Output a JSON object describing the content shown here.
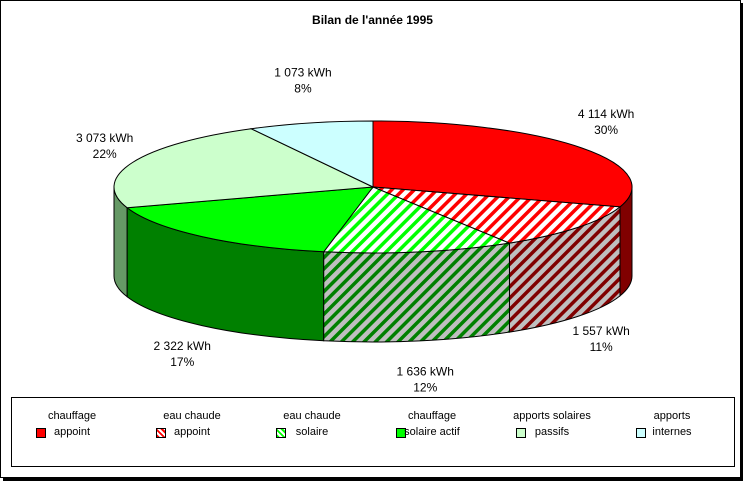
{
  "chart_data": {
    "type": "pie",
    "title": "Bilan de l'année 1995",
    "slices": [
      {
        "name": "chauffage appoint",
        "legend": [
          "chauffage",
          "appoint"
        ],
        "value": 4114,
        "value_label": "4 114 kWh",
        "percent_label": "30%",
        "color": "#ff0000",
        "pattern": "solid"
      },
      {
        "name": "eau chaude appoint",
        "legend": [
          "eau chaude",
          "appoint"
        ],
        "value": 1557,
        "value_label": "1 557 kWh",
        "percent_label": "11%",
        "color": "#ff0000",
        "pattern": "hatch"
      },
      {
        "name": "eau chaude solaire",
        "legend": [
          "eau chaude",
          "solaire"
        ],
        "value": 1636,
        "value_label": "1 636 kWh",
        "percent_label": "12%",
        "color": "#00ff00",
        "pattern": "hatch"
      },
      {
        "name": "chauffage solaire actif",
        "legend": [
          "chauffage",
          "solaire actif"
        ],
        "value": 2322,
        "value_label": "2 322 kWh",
        "percent_label": "17%",
        "color": "#00ff00",
        "pattern": "solid"
      },
      {
        "name": "apports solaires passifs",
        "legend": [
          "apports  solaires",
          "passifs"
        ],
        "value": 3073,
        "value_label": "3 073 kWh",
        "percent_label": "22%",
        "color": "#ccffcc",
        "pattern": "solid"
      },
      {
        "name": "apports internes",
        "legend": [
          "apports",
          "internes"
        ],
        "value": 1073,
        "value_label": "1 073 kWh",
        "percent_label": "8%",
        "color": "#ccffff",
        "pattern": "solid"
      }
    ],
    "legend_position": "bottom"
  }
}
